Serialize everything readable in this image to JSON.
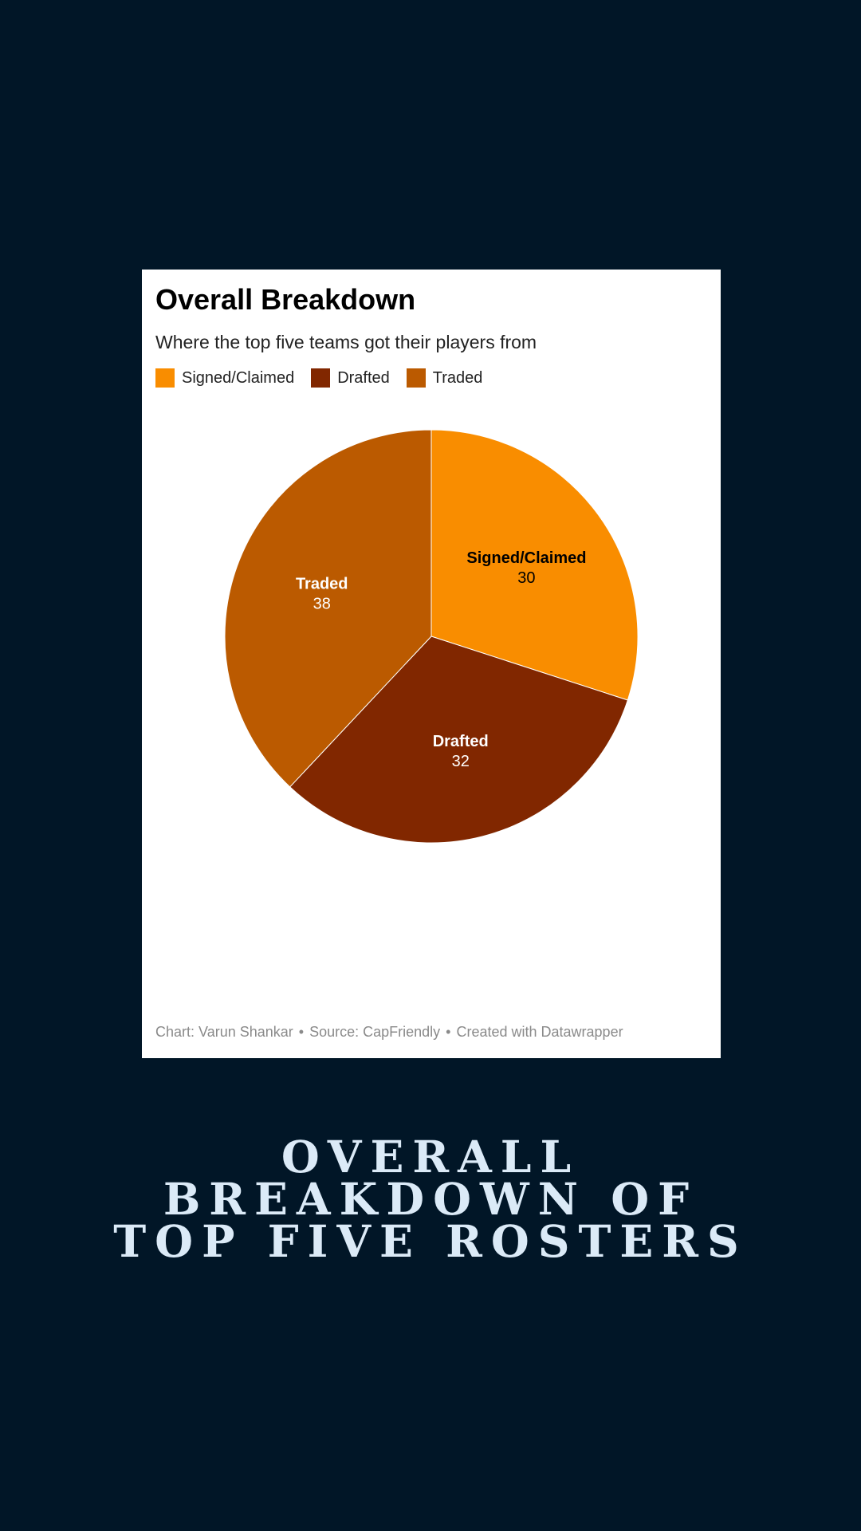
{
  "chart_data": {
    "type": "pie",
    "title": "Overall Breakdown",
    "subtitle": "Where the top five teams got their players from",
    "legend_position": "top-left",
    "categories": [
      "Signed/Claimed",
      "Drafted",
      "Traded"
    ],
    "values": [
      30,
      32,
      38
    ],
    "colors": [
      "#f98d00",
      "#812700",
      "#bb5a00"
    ],
    "label_colors": [
      "#000000",
      "#ffffff",
      "#ffffff"
    ],
    "legend": [
      {
        "label": "Signed/Claimed",
        "color": "#f98d00"
      },
      {
        "label": "Drafted",
        "color": "#812700"
      },
      {
        "label": "Traded",
        "color": "#bb5a00"
      }
    ]
  },
  "footer": {
    "chart_credit": "Chart: Varun Shankar",
    "source": "Source: CapFriendly",
    "created_with": "Created with Datawrapper",
    "separator": "•"
  },
  "poster": {
    "title_lines": [
      "OVERALL",
      "BREAKDOWN OF",
      "TOP FIVE ROSTERS"
    ]
  },
  "colors": {
    "background": "#011627",
    "card": "#ffffff",
    "poster_title": "#dbeaf7"
  }
}
